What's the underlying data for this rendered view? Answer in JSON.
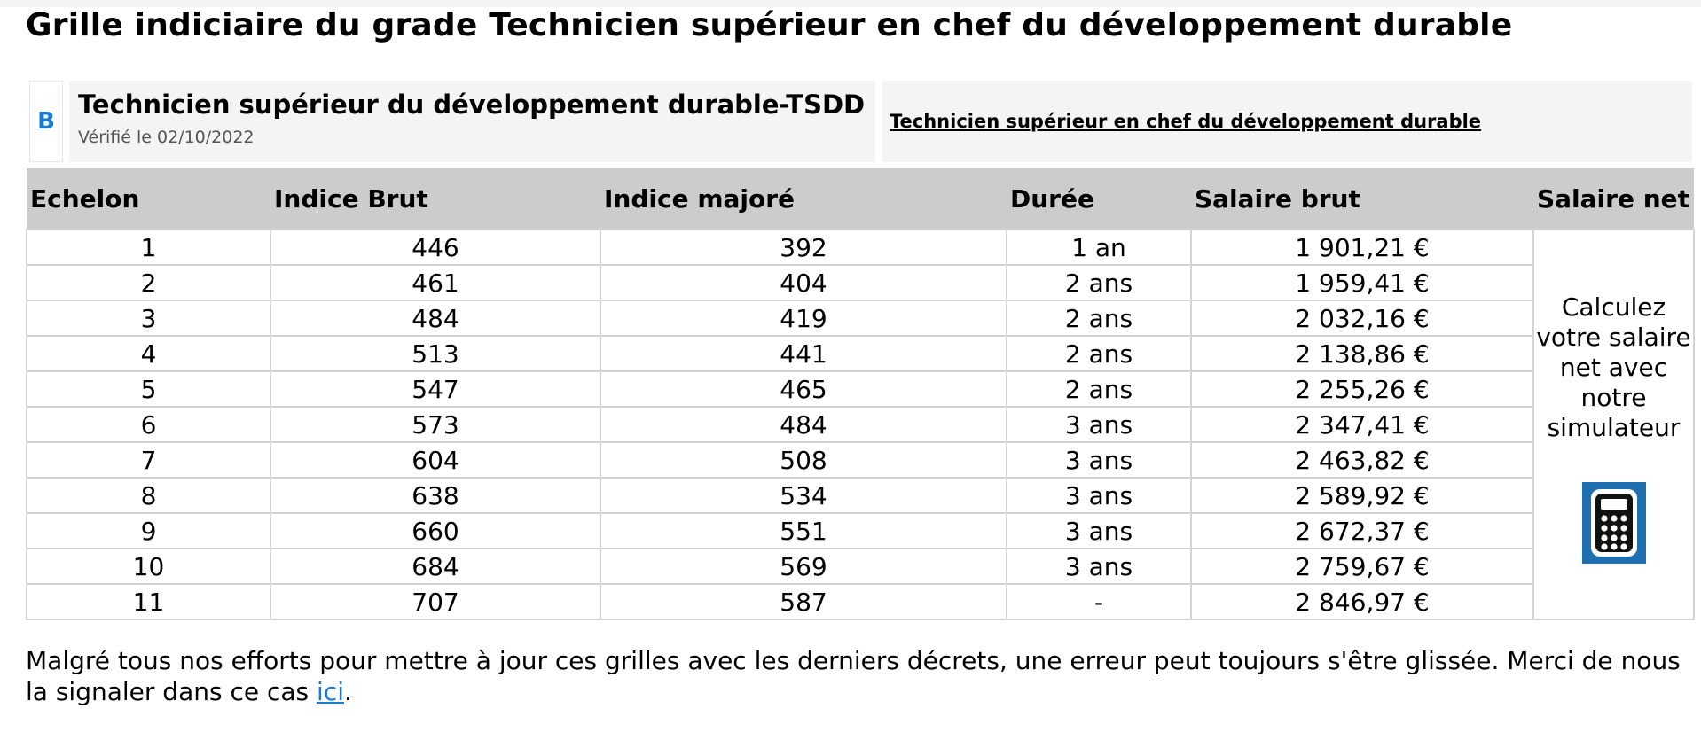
{
  "page": {
    "title": "Grille indiciaire du grade Technicien supérieur en chef du développement durable"
  },
  "grade": {
    "category": "B",
    "name": "Technicien supérieur du développement durable-TSDD",
    "verified": "Vérifié le 02/10/2022",
    "link_label": "Technicien supérieur en chef du développement durable"
  },
  "table": {
    "headers": [
      "Echelon",
      "Indice Brut",
      "Indice majoré",
      "Durée",
      "Salaire brut",
      "Salaire net"
    ],
    "rows": [
      [
        "1",
        "446",
        "392",
        "1 an",
        "1 901,21 €"
      ],
      [
        "2",
        "461",
        "404",
        "2 ans",
        "1 959,41 €"
      ],
      [
        "3",
        "484",
        "419",
        "2 ans",
        "2 032,16 €"
      ],
      [
        "4",
        "513",
        "441",
        "2 ans",
        "2 138,86 €"
      ],
      [
        "5",
        "547",
        "465",
        "2 ans",
        "2 255,26 €"
      ],
      [
        "6",
        "573",
        "484",
        "3 ans",
        "2 347,41 €"
      ],
      [
        "7",
        "604",
        "508",
        "3 ans",
        "2 463,82 €"
      ],
      [
        "8",
        "638",
        "534",
        "3 ans",
        "2 589,92 €"
      ],
      [
        "9",
        "660",
        "551",
        "3 ans",
        "2 672,37 €"
      ],
      [
        "10",
        "684",
        "569",
        "3 ans",
        "2 759,67 €"
      ],
      [
        "11",
        "707",
        "587",
        "-",
        "2 846,97 €"
      ]
    ],
    "net_salary_prompt": "Calculez votre salaire net avec notre simulateur",
    "calculator_icon": "calculator-icon"
  },
  "footer": {
    "text_before": "Malgré tous nos efforts pour mettre à jour ces grilles avec les derniers décrets, une erreur peut toujours s'être glissée. Merci de nous la signaler dans ce cas ",
    "link_label": "ici",
    "text_after": "."
  },
  "colors": {
    "accent": "#1a7bd4",
    "header_bg": "#cccccc",
    "box_bg": "#f4f4f4",
    "calculator_bg": "#1f6fb0"
  }
}
